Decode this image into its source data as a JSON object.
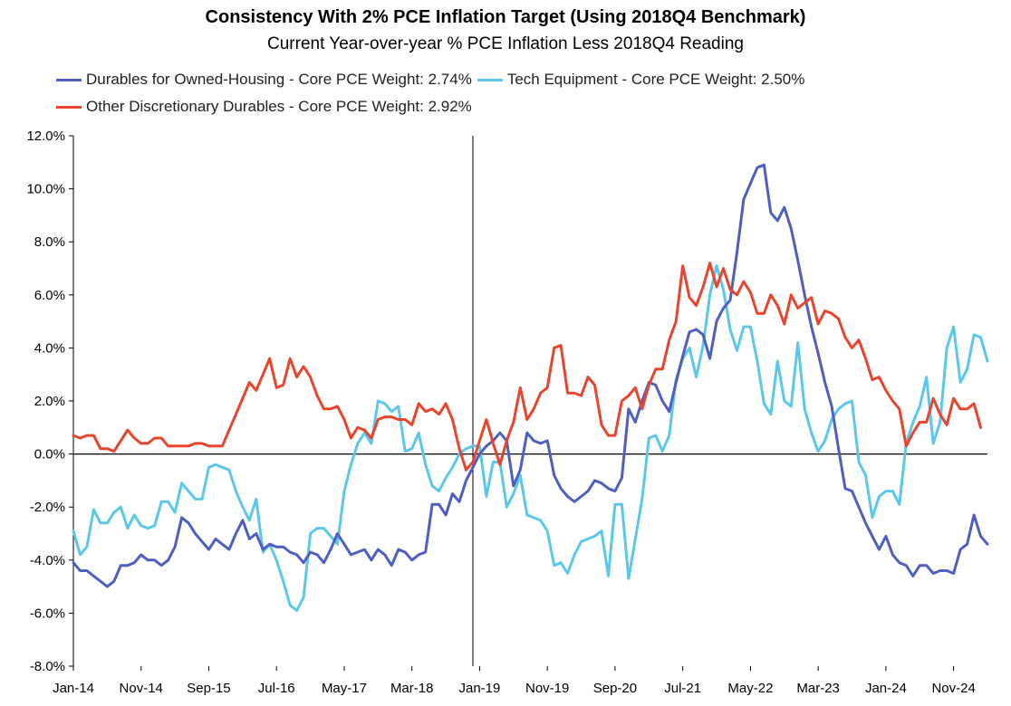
{
  "chart_data": {
    "type": "line",
    "title": "Consistency With 2% PCE Inflation Target (Using 2018Q4 Benchmark)",
    "subtitle": "Current Year-over-year % PCE Inflation Less 2018Q4 Reading",
    "xlabel": "",
    "ylabel": "",
    "ylim": [
      -8,
      12
    ],
    "y_ticks": [
      -8,
      -6,
      -4,
      -2,
      0,
      2,
      4,
      6,
      8,
      10,
      12
    ],
    "y_tick_labels": [
      "-8.0%",
      "-6.0%",
      "-4.0%",
      "-2.0%",
      "0.0%",
      "2.0%",
      "4.0%",
      "6.0%",
      "8.0%",
      "10.0%",
      "12.0%"
    ],
    "x_start": "Jan-14",
    "x_tick_labels": [
      "Jan-14",
      "Nov-14",
      "Sep-15",
      "Jul-16",
      "May-17",
      "Mar-18",
      "Jan-19",
      "Nov-19",
      "Sep-20",
      "Jul-21",
      "May-22",
      "Mar-23",
      "Jan-24",
      "Nov-24"
    ],
    "x_tick_step_months": 10,
    "reference_line": "Dec-18",
    "legend_placement": "top-left",
    "grid": false,
    "series": [
      {
        "name": "Durables for Owned-Housing - Core PCE Weight: 2.74%",
        "color": "#4e5fbf",
        "values": [
          -4.1,
          -4.4,
          -4.4,
          -4.6,
          -4.8,
          -5.0,
          -4.8,
          -4.2,
          -4.2,
          -4.1,
          -3.8,
          -4.0,
          -4.0,
          -4.2,
          -4.0,
          -3.5,
          -2.4,
          -2.6,
          -3.0,
          -3.3,
          -3.6,
          -3.2,
          -3.4,
          -3.6,
          -3.0,
          -2.5,
          -3.2,
          -3.0,
          -3.6,
          -3.4,
          -3.5,
          -3.5,
          -3.7,
          -3.8,
          -4.1,
          -3.7,
          -3.8,
          -4.1,
          -3.6,
          -3.0,
          -3.4,
          -3.8,
          -3.7,
          -3.6,
          -4.0,
          -3.6,
          -3.8,
          -4.2,
          -3.6,
          -3.7,
          -4.0,
          -3.8,
          -3.7,
          -1.9,
          -1.9,
          -2.3,
          -1.5,
          -1.8,
          -1.0,
          -0.5,
          0.0,
          0.3,
          0.5,
          0.8,
          0.5,
          -1.2,
          -0.6,
          0.8,
          0.5,
          0.4,
          0.5,
          -0.8,
          -1.3,
          -1.6,
          -1.8,
          -1.6,
          -1.4,
          -1.0,
          -1.1,
          -1.3,
          -1.4,
          -0.9,
          1.7,
          1.2,
          2.0,
          2.7,
          2.6,
          2.0,
          1.6,
          2.7,
          3.7,
          4.6,
          4.7,
          4.5,
          3.6,
          5.0,
          5.5,
          5.8,
          7.6,
          9.6,
          10.2,
          10.8,
          10.9,
          9.1,
          8.8,
          9.3,
          8.5,
          7.3,
          6.0,
          4.8,
          3.8,
          2.7,
          1.8,
          0.2,
          -1.3,
          -1.4,
          -2.0,
          -2.6,
          -3.1,
          -3.6,
          -3.1,
          -3.8,
          -4.1,
          -4.2,
          -4.6,
          -4.2,
          -4.2,
          -4.5,
          -4.4,
          -4.4,
          -4.5,
          -3.6,
          -3.4,
          -2.3,
          -3.1,
          -3.4
        ]
      },
      {
        "name": "Tech Equipment - Core PCE Weight: 2.50%",
        "color": "#5bc8ea",
        "values": [
          -2.9,
          -3.8,
          -3.5,
          -2.1,
          -2.6,
          -2.6,
          -2.2,
          -2.0,
          -2.8,
          -2.3,
          -2.7,
          -2.8,
          -2.7,
          -1.8,
          -1.8,
          -2.2,
          -1.1,
          -1.4,
          -1.7,
          -1.7,
          -0.5,
          -0.4,
          -0.5,
          -0.6,
          -1.4,
          -2.0,
          -2.5,
          -1.7,
          -3.7,
          -3.4,
          -4.0,
          -4.8,
          -5.7,
          -5.9,
          -5.4,
          -3.0,
          -2.8,
          -2.8,
          -3.1,
          -3.4,
          -1.4,
          -0.4,
          0.4,
          0.8,
          0.4,
          2.0,
          1.9,
          1.6,
          1.8,
          0.1,
          0.2,
          0.8,
          -0.4,
          -1.2,
          -1.4,
          -0.9,
          -0.5,
          0.0,
          0.2,
          0.3,
          0.3,
          -1.6,
          -0.3,
          -0.3,
          -2.0,
          -1.5,
          -0.8,
          -2.3,
          -2.4,
          -2.5,
          -2.9,
          -4.2,
          -4.1,
          -4.5,
          -3.8,
          -3.3,
          -3.2,
          -3.1,
          -2.9,
          -4.6,
          -1.9,
          -1.9,
          -4.7,
          -3.2,
          -1.7,
          0.6,
          0.7,
          0.1,
          0.7,
          2.8,
          3.6,
          4.0,
          2.9,
          4.1,
          6.0,
          7.1,
          6.2,
          4.7,
          3.9,
          4.8,
          4.8,
          3.5,
          1.9,
          1.5,
          3.5,
          2.0,
          1.8,
          4.2,
          1.7,
          0.8,
          0.1,
          0.5,
          1.3,
          1.7,
          1.9,
          2.0,
          -0.3,
          -0.8,
          -2.4,
          -1.6,
          -1.4,
          -1.4,
          -1.9,
          0.4,
          1.2,
          1.8,
          2.9,
          0.4,
          1.2,
          4.0,
          4.8,
          2.7,
          3.2,
          4.5,
          4.4,
          3.5
        ]
      },
      {
        "name": "Other Discretionary Durables - Core PCE Weight: 2.92%",
        "color": "#e8442e",
        "values": [
          0.7,
          0.6,
          0.7,
          0.7,
          0.2,
          0.2,
          0.1,
          0.5,
          0.9,
          0.6,
          0.4,
          0.4,
          0.6,
          0.6,
          0.3,
          0.3,
          0.3,
          0.3,
          0.4,
          0.4,
          0.3,
          0.3,
          0.3,
          0.9,
          1.5,
          2.1,
          2.7,
          2.4,
          3.0,
          3.6,
          2.5,
          2.6,
          3.6,
          2.9,
          3.3,
          2.9,
          2.2,
          1.7,
          1.7,
          1.8,
          1.3,
          0.6,
          1.0,
          0.9,
          0.6,
          1.3,
          1.4,
          1.4,
          1.3,
          1.3,
          1.1,
          1.9,
          1.6,
          1.7,
          1.5,
          1.9,
          1.3,
          0.2,
          -0.6,
          -0.3,
          0.5,
          1.3,
          0.4,
          -0.4,
          0.5,
          1.2,
          2.5,
          1.3,
          1.7,
          2.3,
          2.5,
          4.0,
          4.1,
          2.3,
          2.3,
          2.2,
          2.9,
          2.6,
          1.1,
          0.7,
          0.7,
          2.0,
          2.2,
          2.5,
          1.7,
          2.6,
          3.2,
          3.2,
          4.3,
          5.0,
          7.1,
          5.9,
          5.6,
          6.3,
          7.2,
          6.3,
          7.0,
          6.2,
          6.0,
          6.5,
          6.1,
          5.3,
          5.3,
          6.0,
          5.6,
          4.9,
          6.0,
          5.5,
          5.7,
          5.9,
          4.9,
          5.4,
          5.3,
          5.1,
          4.4,
          4.0,
          4.3,
          3.6,
          2.8,
          2.9,
          2.4,
          2.0,
          1.7,
          0.3,
          0.8,
          1.2,
          1.2,
          2.1,
          1.5,
          1.1,
          2.1,
          1.7,
          1.7,
          1.9,
          1.0
        ]
      }
    ]
  }
}
